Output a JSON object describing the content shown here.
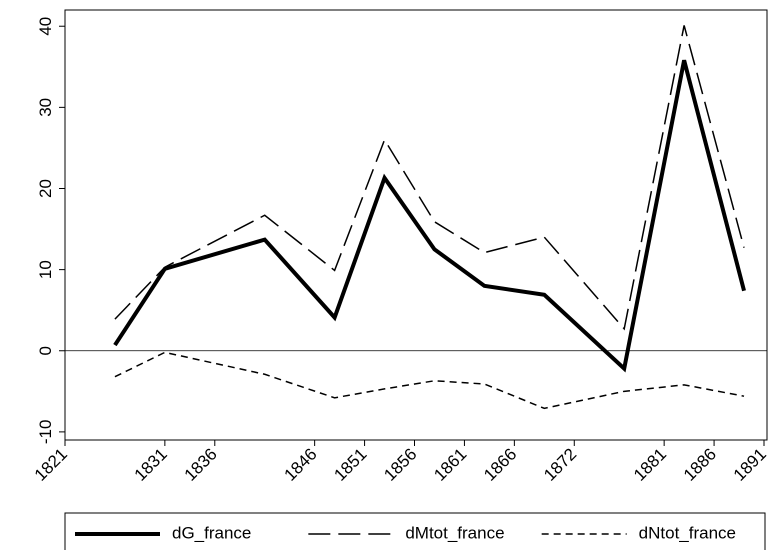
{
  "chart_data": {
    "type": "line",
    "x": [
      1826,
      1831,
      1841,
      1848,
      1853,
      1858,
      1863,
      1869,
      1877,
      1883,
      1889
    ],
    "series": [
      {
        "name": "dG_france",
        "color": "#000000",
        "dash": "solid",
        "values": [
          0.7,
          10.1,
          13.7,
          4.1,
          21.3,
          12.5,
          8.0,
          6.9,
          -2.2,
          35.8,
          7.4
        ]
      },
      {
        "name": "dMtot_france",
        "color": "#000000",
        "dash": "long",
        "values": [
          3.9,
          10.3,
          16.7,
          9.9,
          26.0,
          15.9,
          12.1,
          14.0,
          2.7,
          40.1,
          12.7
        ]
      },
      {
        "name": "dNtot_france",
        "color": "#000000",
        "dash": "short",
        "values": [
          -3.2,
          -0.2,
          -2.9,
          -5.8,
          -4.7,
          -3.7,
          -4.1,
          -7.1,
          -5.0,
          -4.2,
          -5.6
        ]
      }
    ],
    "xlim": [
      1821,
      1891.3
    ],
    "xticks": [
      1821,
      1831,
      1836,
      1846,
      1851,
      1856,
      1861,
      1866,
      1872,
      1881,
      1886,
      1891
    ],
    "ylim": [
      -11,
      42
    ],
    "yticks": [
      -10,
      0,
      10,
      20,
      30,
      40
    ],
    "legend": "bottom"
  }
}
